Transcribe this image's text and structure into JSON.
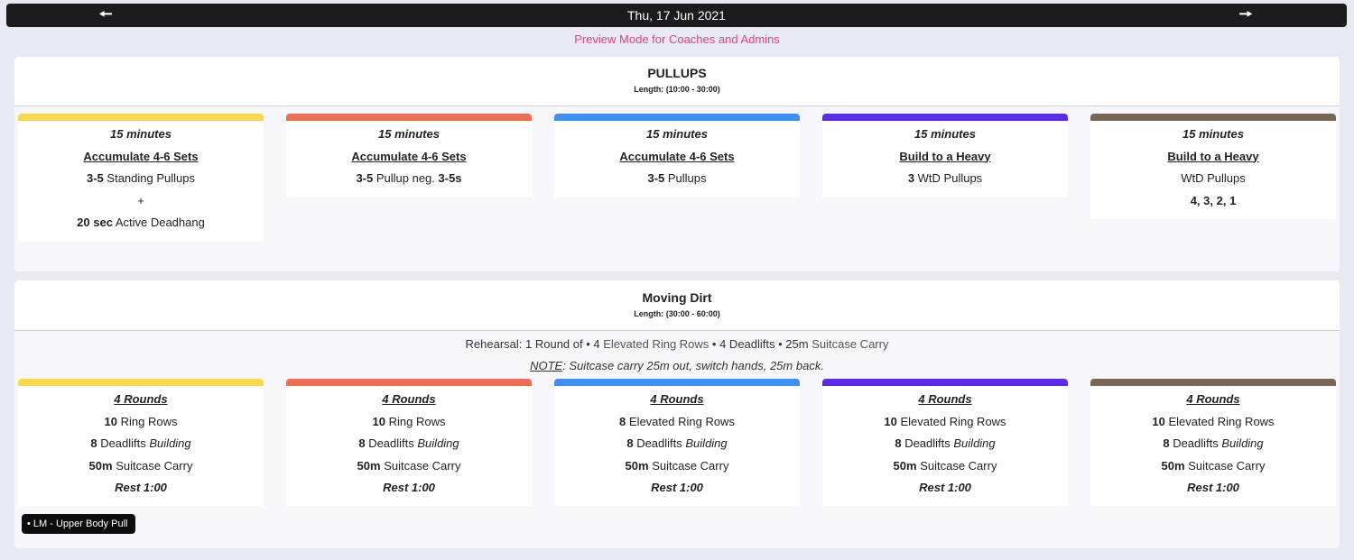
{
  "nav": {
    "date": "Thu, 17 Jun 2021",
    "prev_icon": "arrow-left-icon",
    "next_icon": "arrow-right-icon"
  },
  "preview_text": "Preview Mode for Coaches and Admins",
  "colors": {
    "yellow": "#f9d94c",
    "orange": "#ee6e51",
    "blue": "#3f8ff4",
    "purple": "#5b2bea",
    "brown": "#7a6655"
  },
  "sections": [
    {
      "title": "PULLUPS",
      "length": "Length: (10:00 - 30:00)",
      "cards": [
        {
          "duration": "15 minutes",
          "title": "Accumulate 4-6 Sets",
          "l1_b": "3-5",
          "l1_t": " Standing Pullups",
          "l2": "+",
          "l3_b": "20 sec",
          "l3_t": " Active Deadhang"
        },
        {
          "duration": "15 minutes",
          "title": "Accumulate 4-6 Sets",
          "l1_b": "3-5",
          "l1_t": " Pullup neg. ",
          "l1_b2": "3-5s"
        },
        {
          "duration": "15 minutes",
          "title": "Accumulate 4-6 Sets",
          "l1_b": "3-5",
          "l1_t": " Pullups"
        },
        {
          "duration": "15 minutes",
          "title": "Build to a Heavy",
          "l1_b": "3",
          "l1_t": " WtD Pullups"
        },
        {
          "duration": "15 minutes",
          "title": "Build to a Heavy",
          "l1_t": "WtD Pullups",
          "l2_b": "4, 3, 2, 1"
        }
      ]
    },
    {
      "title": "Moving Dirt",
      "length": "Length: (30:00 - 60:00)",
      "rehearsal": {
        "prefix": "Rehearsal: 1 Round of • ",
        "n1": "4",
        "t1": " Elevated Ring Rows",
        "sep1": " • ",
        "n2": "4",
        "t2": " Deadlifts",
        "sep2": " • ",
        "n3": "25m",
        "t3": " Suitcase Carry"
      },
      "note": {
        "label": "NOTE",
        "text": ": Suitcase carry 25m out, switch hands, 25m back."
      },
      "cards": [
        {
          "title": "4 Rounds",
          "r1_b": "10",
          "r1_t": " Ring Rows",
          "r2_b": "8",
          "r2_t": " Deadlifts ",
          "r2_i": "Building",
          "r3_b": "50m",
          "r3_t": " Suitcase Carry",
          "rest": "Rest 1:00"
        },
        {
          "title": "4 Rounds",
          "r1_b": "10",
          "r1_t": " Ring Rows",
          "r2_b": "8",
          "r2_t": " Deadlifts ",
          "r2_i": "Building",
          "r3_b": "50m",
          "r3_t": " Suitcase Carry",
          "rest": "Rest 1:00"
        },
        {
          "title": "4 Rounds",
          "r1_b": "8",
          "r1_t": " Elevated Ring Rows",
          "r2_b": "8",
          "r2_t": " Deadlifts ",
          "r2_i": "Building",
          "r3_b": "50m",
          "r3_t": " Suitcase Carry",
          "rest": "Rest 1:00"
        },
        {
          "title": "4 Rounds",
          "r1_b": "10",
          "r1_t": " Elevated Ring Rows",
          "r2_b": "8",
          "r2_t": " Deadlifts ",
          "r2_i": "Building",
          "r3_b": "50m",
          "r3_t": " Suitcase Carry",
          "rest": "Rest 1:00"
        },
        {
          "title": "4 Rounds",
          "r1_b": "10",
          "r1_t": " Elevated Ring Rows",
          "r2_b": "8",
          "r2_t": " Deadlifts ",
          "r2_i": "Building",
          "r3_b": "50m",
          "r3_t": " Suitcase Carry",
          "rest": "Rest 1:00"
        }
      ],
      "tag": "• LM - Upper Body Pull"
    }
  ]
}
